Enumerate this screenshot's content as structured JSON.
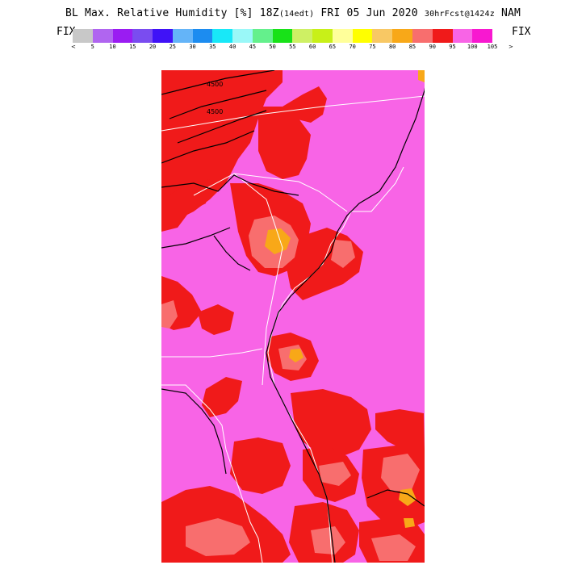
{
  "header": {
    "title_main": "BL Max. Relative Humidity [%] 18Z",
    "title_local": "(14edt)",
    "title_date": " FRI 05 Jun 2020 ",
    "title_fcst": "30hrFcst@1424z",
    "title_model": " NAM"
  },
  "legend": {
    "fix_left": "FIX",
    "fix_right": "FIX",
    "arrow_left": "<",
    "arrow_right": ">",
    "colors": [
      "#c8c8c8",
      "#b065f0",
      "#9a1cf2",
      "#7a4cf0",
      "#4012f7",
      "#64b4f8",
      "#1c8cf0",
      "#18e8f8",
      "#9af8f8",
      "#64f08c",
      "#18e218",
      "#cef064",
      "#c8f018",
      "#ffff9a",
      "#ffff00",
      "#f8c864",
      "#f8a818",
      "#f86e6e",
      "#f01a1a",
      "#f864e6",
      "#f818d0"
    ],
    "labels": [
      "5",
      "10",
      "15",
      "20",
      "25",
      "30",
      "35",
      "40",
      "45",
      "50",
      "55",
      "60",
      "65",
      "70",
      "75",
      "80",
      "85",
      "90",
      "95",
      "100",
      "105"
    ]
  },
  "map": {
    "region": "Southeastern United States coast",
    "fill_colors": {
      "background": "#f864e6",
      "high": "#f01a1a",
      "mid": "#f86e6e",
      "low": "#f8a818",
      "lines": "#ffffff",
      "contours": "#000000"
    },
    "contour_labels": [
      "4500",
      "4500"
    ]
  }
}
